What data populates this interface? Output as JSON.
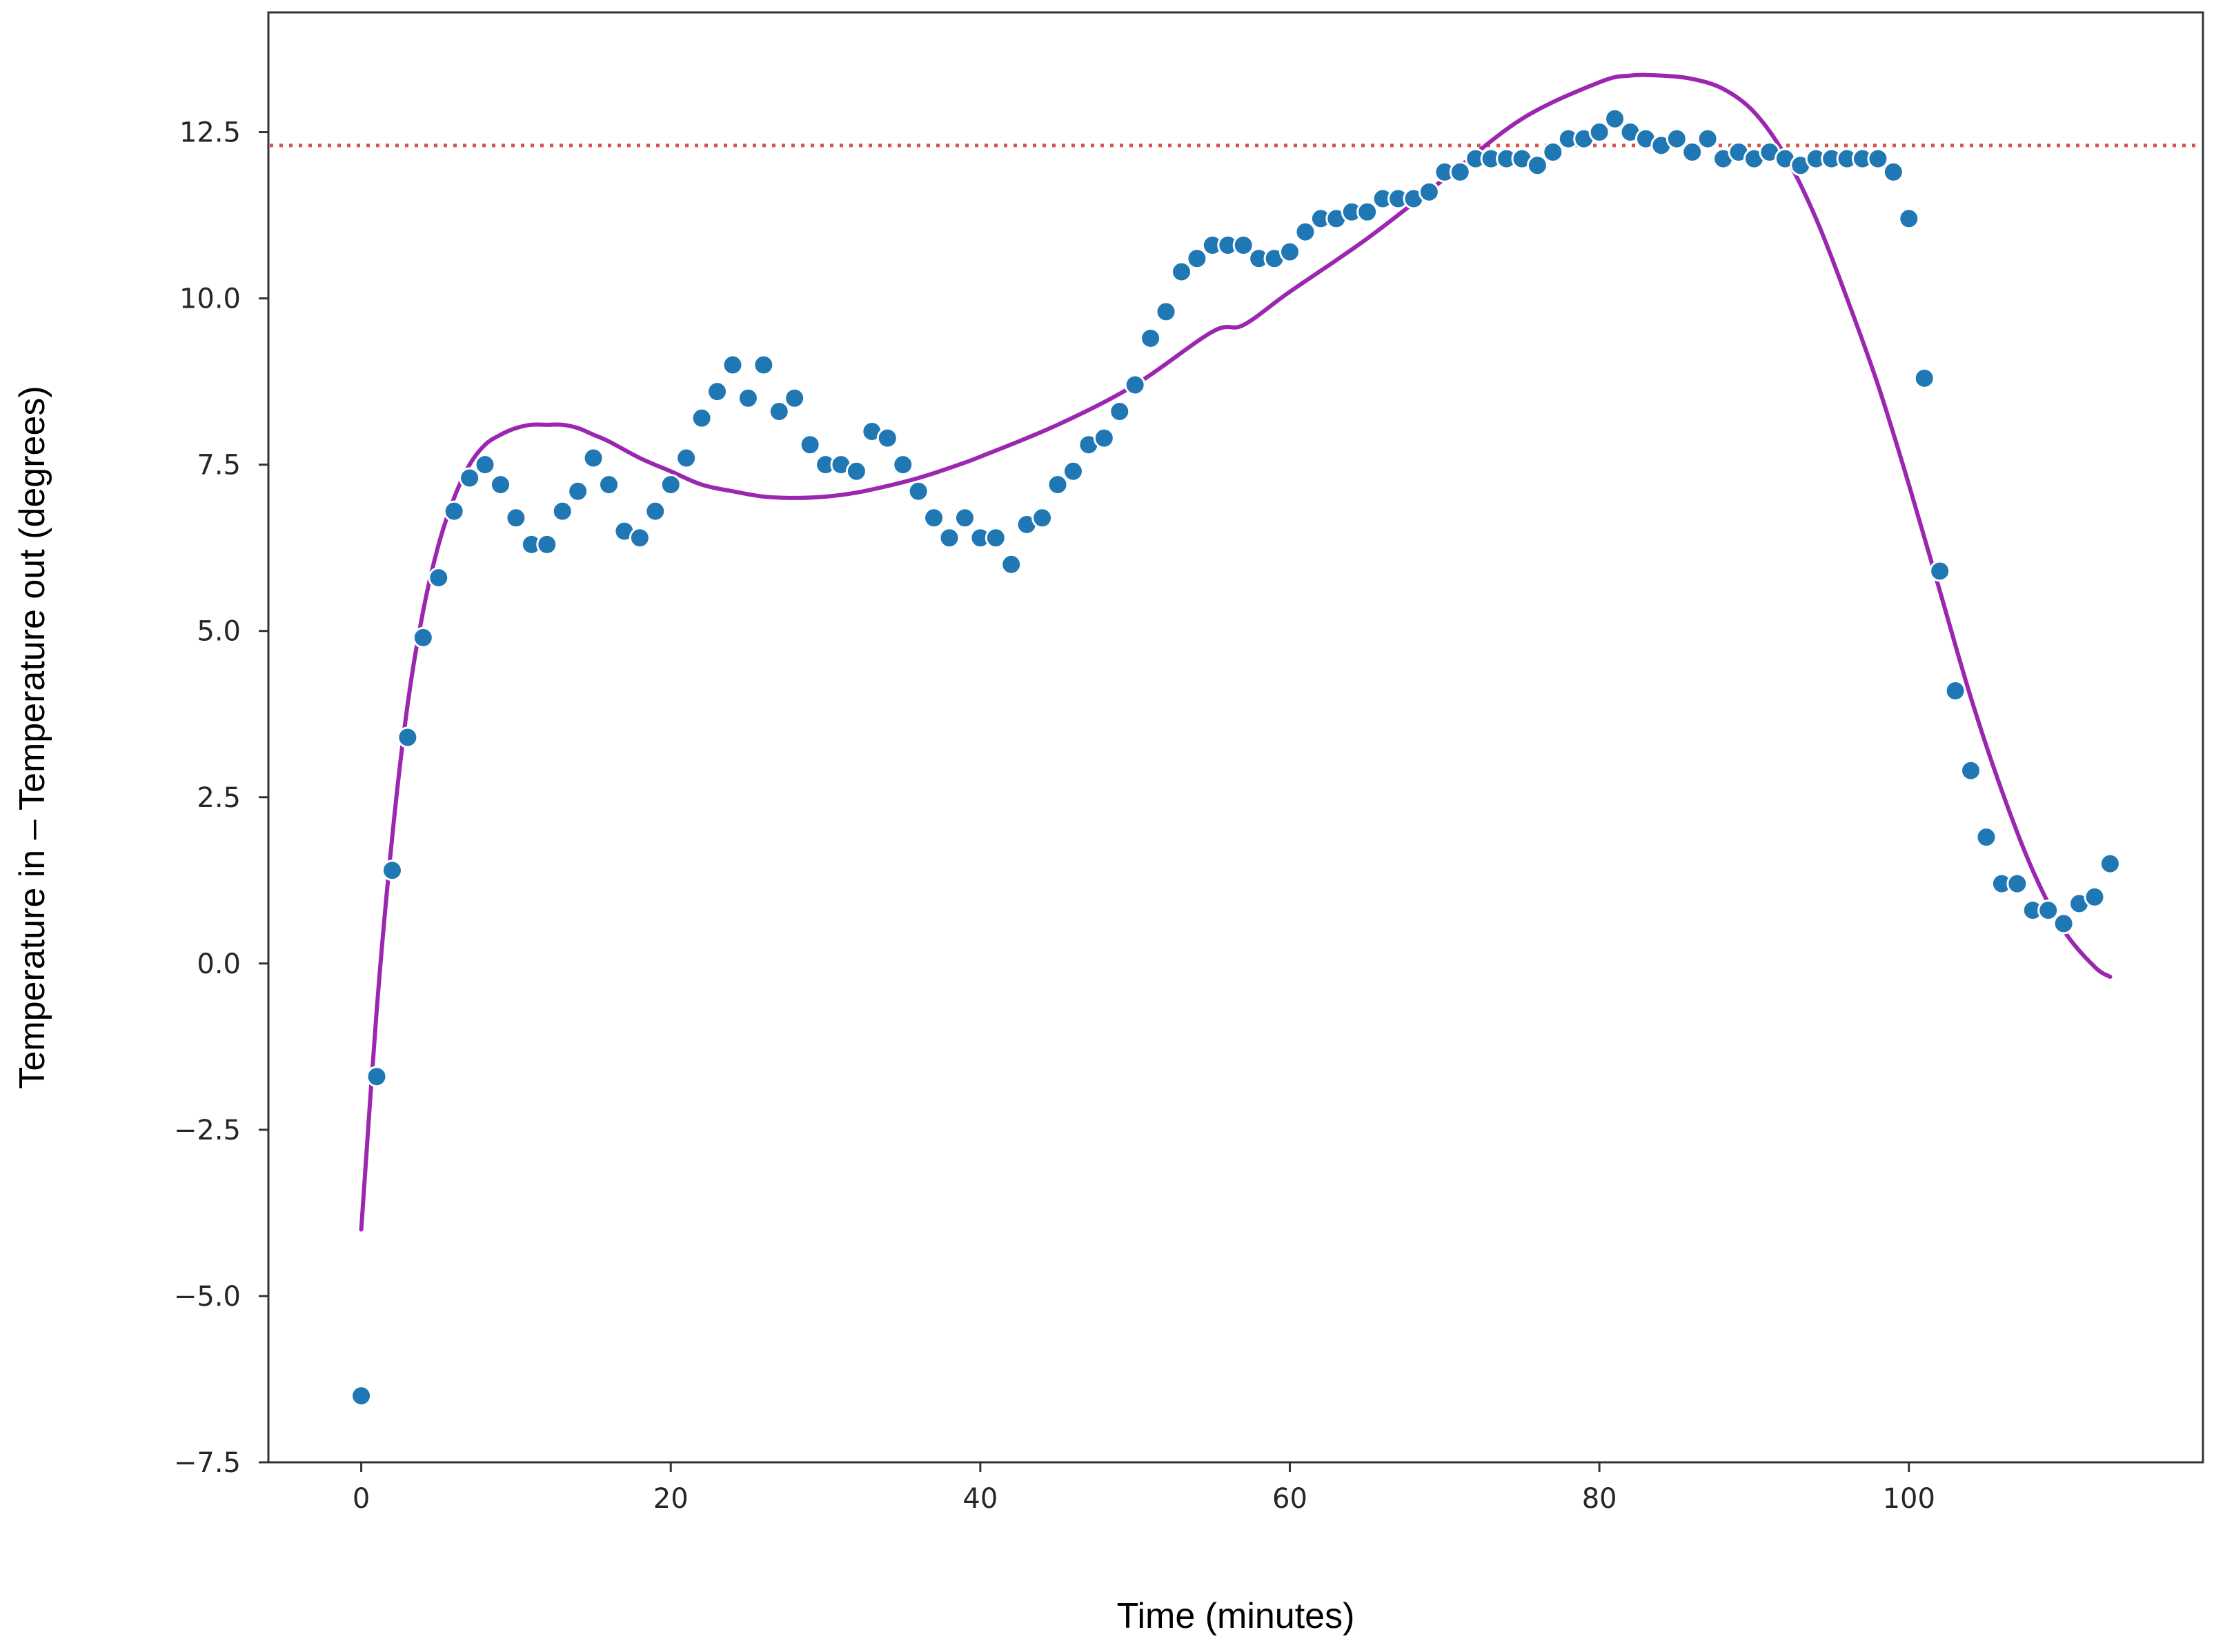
{
  "chart_data": {
    "type": "scatter",
    "title": "",
    "xlabel": "Time (minutes)",
    "ylabel": "Temperature in – Temperature out (degrees)",
    "xlim": [
      -6,
      119
    ],
    "ylim": [
      -7.5,
      14.3
    ],
    "xticks": [
      0,
      20,
      40,
      60,
      80,
      100
    ],
    "xtick_labels": [
      "0",
      "20",
      "40",
      "60",
      "80",
      "100"
    ],
    "yticks": [
      -7.5,
      -5.0,
      -2.5,
      0.0,
      2.5,
      5.0,
      7.5,
      10.0,
      12.5
    ],
    "ytick_labels": [
      "−7.5",
      "−5.0",
      "−2.5",
      "0.0",
      "2.5",
      "5.0",
      "7.5",
      "10.0",
      "12.5"
    ],
    "grid": false,
    "legend": "none",
    "series": [
      {
        "kind": "scatter",
        "color": "#1f77b4",
        "x": [
          0,
          1,
          2,
          3,
          4,
          5,
          6,
          7,
          8,
          9,
          10,
          11,
          12,
          13,
          14,
          15,
          16,
          17,
          18,
          19,
          20,
          21,
          22,
          23,
          24,
          25,
          26,
          27,
          28,
          29,
          30,
          31,
          32,
          33,
          34,
          35,
          36,
          37,
          38,
          39,
          40,
          41,
          42,
          43,
          44,
          45,
          46,
          47,
          48,
          49,
          50,
          51,
          52,
          53,
          54,
          55,
          56,
          57,
          58,
          59,
          60,
          61,
          62,
          63,
          64,
          65,
          66,
          67,
          68,
          69,
          70,
          71,
          72,
          73,
          74,
          75,
          76,
          77,
          78,
          79,
          80,
          81,
          82,
          83,
          84,
          85,
          86,
          87,
          88,
          89,
          90,
          91,
          92,
          93,
          94,
          95,
          96,
          97,
          98,
          99,
          100,
          101,
          102,
          103,
          104,
          105,
          106,
          107,
          108,
          109,
          110,
          111,
          112,
          113
        ],
        "y": [
          -6.5,
          -1.7,
          1.4,
          3.4,
          4.9,
          5.8,
          6.8,
          7.3,
          7.5,
          7.2,
          6.7,
          6.3,
          6.3,
          6.8,
          7.1,
          7.6,
          7.2,
          6.5,
          6.4,
          6.8,
          7.2,
          7.6,
          8.2,
          8.6,
          9.0,
          8.5,
          9.0,
          8.3,
          8.5,
          7.8,
          7.5,
          7.5,
          7.4,
          8.0,
          7.9,
          7.5,
          7.1,
          6.7,
          6.4,
          6.7,
          6.4,
          6.4,
          6.0,
          6.6,
          6.7,
          7.2,
          7.4,
          7.8,
          7.9,
          8.3,
          8.7,
          9.4,
          9.8,
          10.4,
          10.6,
          10.8,
          10.8,
          10.8,
          10.6,
          10.6,
          10.7,
          11.0,
          11.2,
          11.2,
          11.3,
          11.3,
          11.5,
          11.5,
          11.5,
          11.6,
          11.9,
          11.9,
          12.1,
          12.1,
          12.1,
          12.1,
          12.0,
          12.2,
          12.4,
          12.4,
          12.5,
          12.7,
          12.5,
          12.4,
          12.3,
          12.4,
          12.2,
          12.4,
          12.1,
          12.2,
          12.1,
          12.2,
          12.1,
          12.0,
          12.1,
          12.1,
          12.1,
          12.1,
          12.1,
          11.9,
          11.2,
          8.8,
          5.9,
          4.1,
          2.9,
          1.9,
          1.2,
          1.2,
          0.8,
          0.8,
          0.6,
          0.9,
          1.0,
          1.5
        ]
      },
      {
        "kind": "line",
        "color": "#9b26af",
        "x": [
          0,
          1,
          2,
          3,
          4,
          5,
          6,
          7,
          8,
          9,
          10,
          11,
          12,
          13,
          14,
          15,
          16,
          18,
          20,
          22,
          24,
          26,
          28,
          30,
          32,
          34,
          36,
          38,
          40,
          45,
          50,
          55,
          57,
          60,
          65,
          70,
          75,
          80,
          82,
          84,
          86,
          88,
          90,
          92,
          94,
          96,
          98,
          100,
          102,
          104,
          106,
          108,
          110,
          112,
          113
        ],
        "y": [
          -4.0,
          -0.7,
          1.9,
          3.9,
          5.3,
          6.3,
          7.0,
          7.5,
          7.8,
          7.95,
          8.05,
          8.1,
          8.1,
          8.1,
          8.05,
          7.95,
          7.85,
          7.6,
          7.4,
          7.2,
          7.1,
          7.02,
          7.0,
          7.02,
          7.08,
          7.18,
          7.3,
          7.45,
          7.62,
          8.1,
          8.7,
          9.5,
          9.6,
          10.1,
          10.9,
          11.8,
          12.7,
          13.25,
          13.35,
          13.35,
          13.3,
          13.15,
          12.8,
          12.15,
          11.2,
          10.0,
          8.7,
          7.2,
          5.6,
          4.0,
          2.6,
          1.4,
          0.5,
          -0.05,
          -0.2
        ]
      },
      {
        "kind": "hline",
        "color": "#d9534f",
        "style": "dotted",
        "y": 12.3
      }
    ]
  }
}
